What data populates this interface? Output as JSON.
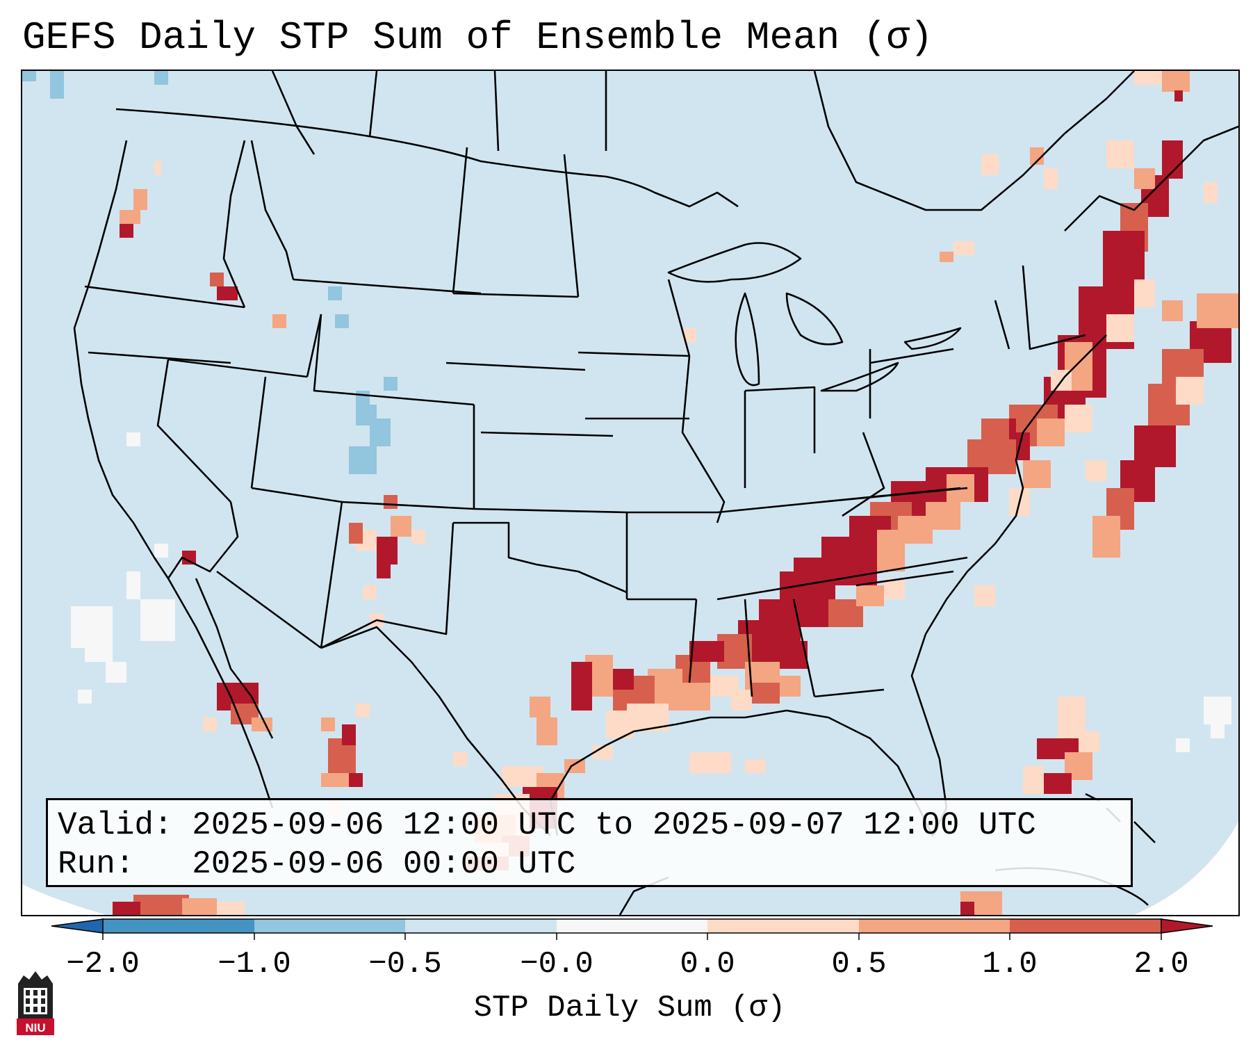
{
  "title": "GEFS Daily STP Sum of Ensemble Mean (σ)",
  "info": {
    "valid_label": "Valid:",
    "valid_text": "2025-09-06 12:00 UTC to 2025-09-07 12:00 UTC",
    "run_label": "Run:",
    "run_text": "2025-09-06 00:00 UTC"
  },
  "colorbar": {
    "label": "STP Daily Sum (σ)",
    "tick_labels": [
      "−2.0",
      "−1.0",
      "−0.5",
      "−0.0",
      "0.0",
      "0.5",
      "1.0",
      "2.0"
    ],
    "colors": {
      "under": "#2166ac",
      "bin_neg2_neg1": "#4393c3",
      "bin_neg1_neg05": "#92c5de",
      "bin_neg05_0": "#d1e5f0",
      "bin_zero": "#f7f7f7",
      "bin_0_05": "#fddbc7",
      "bin_05_1": "#f4a582",
      "bin_1_2": "#d6604d",
      "over": "#b2182b"
    }
  },
  "map": {
    "background_color": "#d1e5f0",
    "outline_color": "#000000",
    "legend_values": [
      {
        "category": "−2.0 to −1.0",
        "color": "#4393c3"
      },
      {
        "category": "−1.0 to −0.5",
        "color": "#92c5de"
      },
      {
        "category": "−0.5 to 0.0",
        "color": "#d1e5f0"
      },
      {
        "category": "−0.0 to 0.0",
        "color": "#f7f7f7"
      },
      {
        "category": "0.0 to 0.5",
        "color": "#fddbc7"
      },
      {
        "category": "0.5 to 1.0",
        "color": "#f4a582"
      },
      {
        "category": "1.0 to 2.0",
        "color": "#d6604d"
      },
      {
        "category": "> 2.0",
        "color": "#b2182b"
      }
    ]
  },
  "logo": {
    "text": "NIU"
  }
}
